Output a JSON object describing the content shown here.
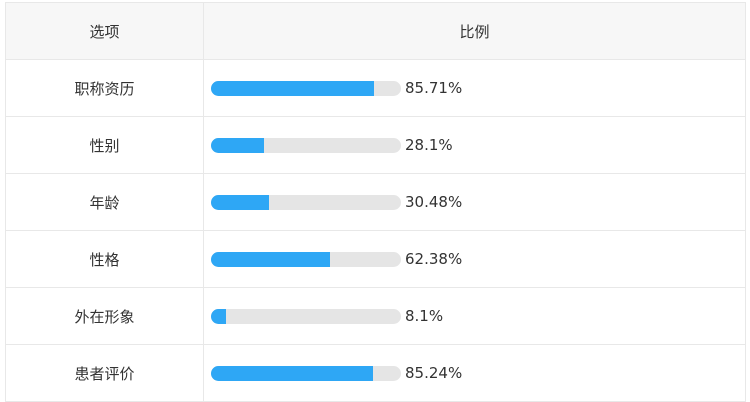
{
  "table": {
    "headers": [
      "选项",
      "比例"
    ],
    "bar_color": "#2ea7f5",
    "scale_max": 100,
    "rows": [
      {
        "label": "职称资历",
        "value": 85.71,
        "value_label": "85.71%"
      },
      {
        "label": "性别",
        "value": 28.1,
        "value_label": "28.1%"
      },
      {
        "label": "年龄",
        "value": 30.48,
        "value_label": "30.48%"
      },
      {
        "label": "性格",
        "value": 62.38,
        "value_label": "62.38%"
      },
      {
        "label": "外在形象",
        "value": 8.1,
        "value_label": "8.1%"
      },
      {
        "label": "患者评价",
        "value": 85.24,
        "value_label": "85.24%"
      }
    ]
  }
}
